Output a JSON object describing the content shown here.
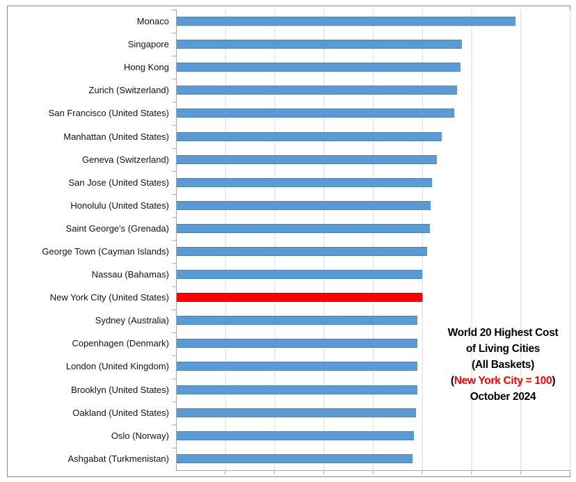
{
  "chart_data": {
    "type": "bar",
    "orientation": "horizontal",
    "title": "World 20 Highest Cost of Living Cities (All Baskets) (New York City = 100) October 2024",
    "xlabel": "",
    "ylabel": "",
    "xlim": [
      0,
      160
    ],
    "gridline_interval": 20,
    "grid": "vertical-only",
    "legend": "none",
    "value_axis_tick_labels_visible": false,
    "annotation": {
      "line1": "World 20 Highest Cost",
      "line2": "of Living Cities",
      "line3": "(All Baskets)",
      "line4_prefix": "(",
      "line4_red": "New York City = 100",
      "line4_suffix": ")",
      "line5": "October 2024"
    },
    "categories": [
      "Monaco",
      "Singapore",
      "Hong Kong",
      "Zurich (Switzerland)",
      "San Francisco (United States)",
      "Manhattan (United States)",
      "Geneva (Switzerland)",
      "San Jose (United States)",
      "Honolulu (United States)",
      "Saint George's (Grenada)",
      "George Town (Cayman Islands)",
      "Nassau (Bahamas)",
      "New York City (United States)",
      "Sydney (Australia)",
      "Copenhagen (Denmark)",
      "London (United Kingdom)",
      "Brooklyn (United States)",
      "Oakland (United States)",
      "Oslo (Norway)",
      "Ashgabat (Turkmenistan)"
    ],
    "values": [
      138,
      116,
      115.5,
      114,
      113,
      108,
      106,
      104,
      103.5,
      103,
      102,
      100,
      100,
      98,
      98,
      98,
      98,
      97.5,
      96.5,
      96
    ],
    "highlight_category": "New York City (United States)",
    "highlight_index": 12,
    "colors": {
      "bar": "#5B9BD5",
      "highlight_bar": "#FF0000",
      "gridline": "#D9D9D9",
      "axis": "#A6A6A6",
      "frame_border": "#8A8A8A",
      "annotation_text": "#000000",
      "annotation_red": "#FF0000"
    }
  }
}
